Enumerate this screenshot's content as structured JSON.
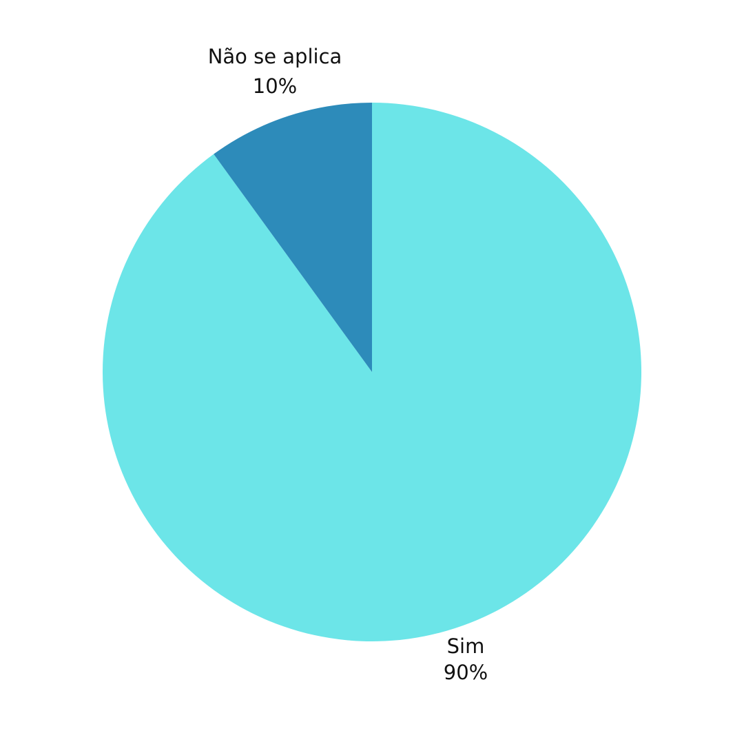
{
  "chart_data": {
    "type": "pie",
    "start": "12 o'clock",
    "direction": "clockwise",
    "slices": [
      {
        "label": "Sim",
        "value": 90,
        "display": "90%",
        "color": "#6ce5e8"
      },
      {
        "label": "Não se aplica",
        "value": 10,
        "display": "10%",
        "color": "#2d8bba"
      }
    ]
  }
}
